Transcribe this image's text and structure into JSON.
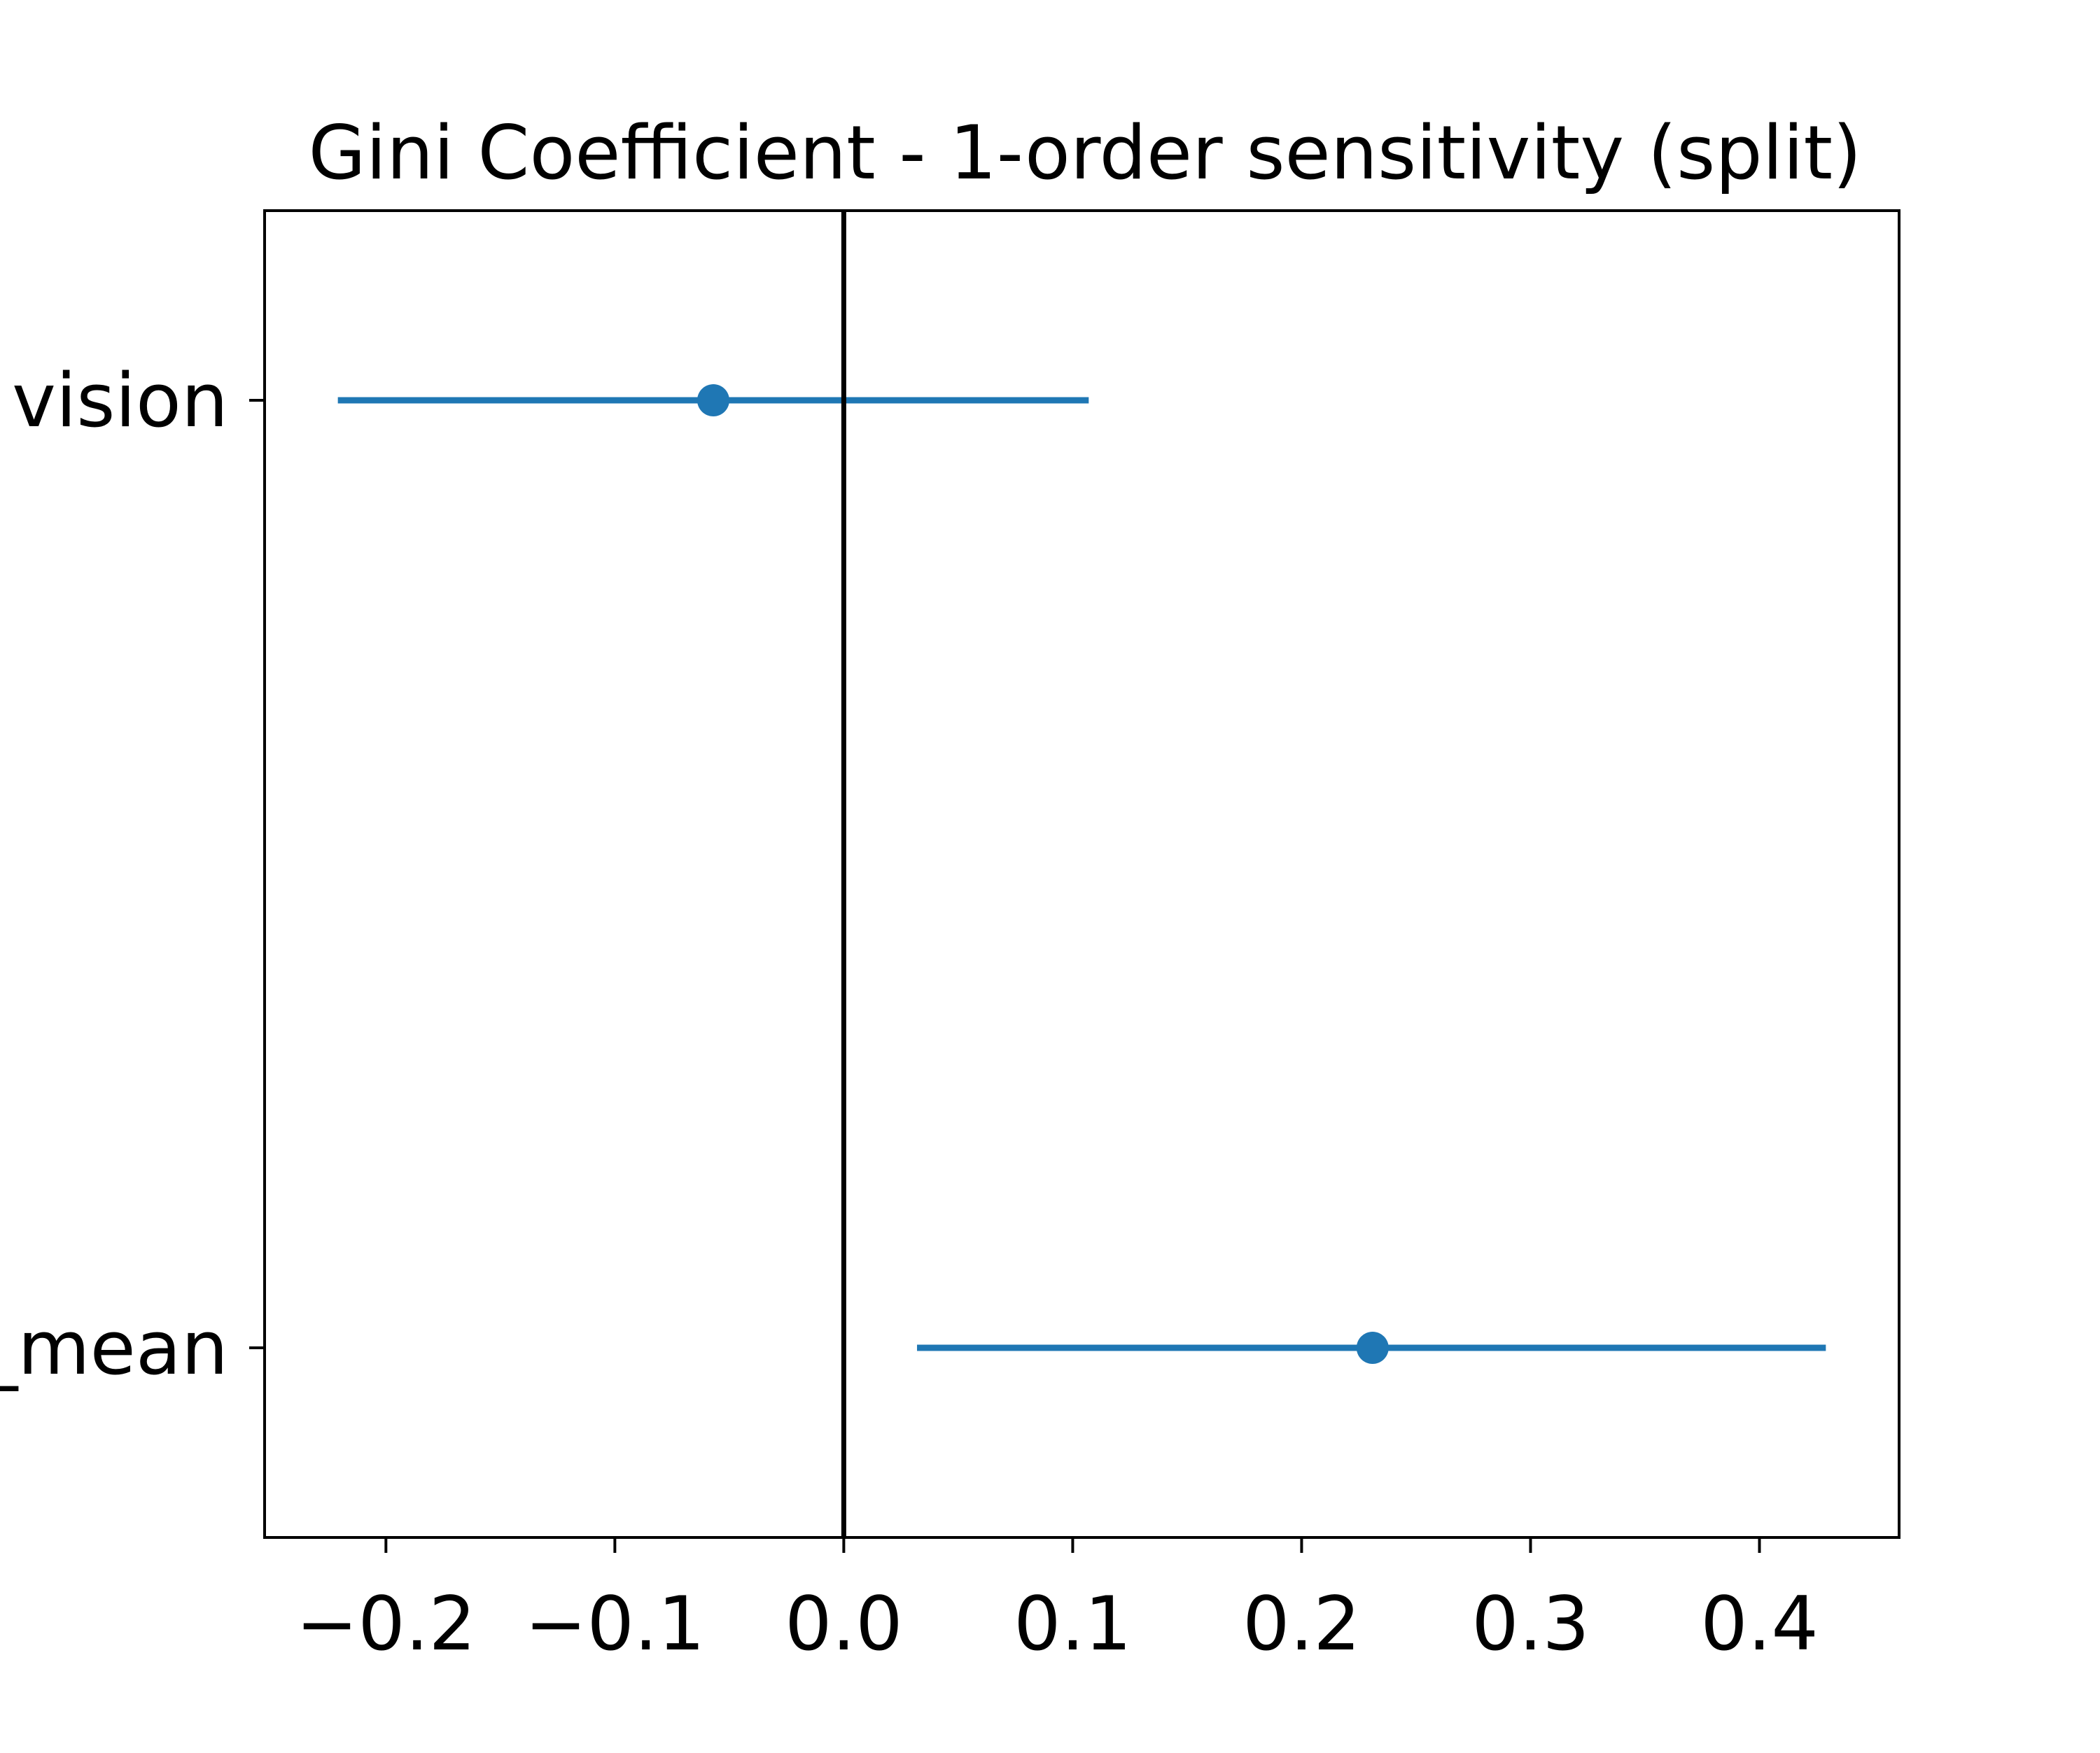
{
  "chart_data": {
    "type": "scatter",
    "title": "Gini Coefficient - 1-order sensitivity (split)",
    "xlabel": "",
    "ylabel": "",
    "xlim": [
      -0.253,
      0.461
    ],
    "xticks": [
      -0.2,
      -0.1,
      0.0,
      0.1,
      0.2,
      0.3,
      0.4
    ],
    "xtick_labels": [
      "−0.2",
      "−0.1",
      "0.0",
      "0.1",
      "0.2",
      "0.3",
      "0.4"
    ],
    "categories": [
      "vision",
      "_mean"
    ],
    "points": [
      {
        "category": "vision",
        "value": -0.057,
        "lower": -0.221,
        "upper": 0.107
      },
      {
        "category": "_mean",
        "value": 0.231,
        "lower": 0.032,
        "upper": 0.429
      }
    ],
    "reference_line_x": 0.0,
    "grid": false,
    "colors": {
      "series": "#1f77b4",
      "reference_line": "#000000",
      "axes": "#000000"
    }
  }
}
